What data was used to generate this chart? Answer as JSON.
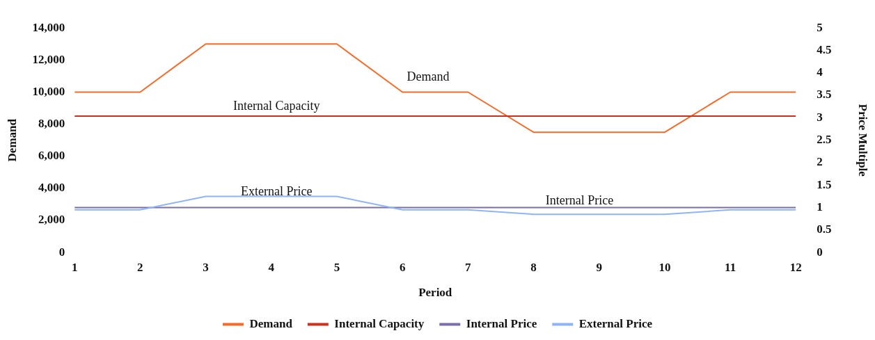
{
  "chart_data": {
    "type": "line",
    "xlabel": "Period",
    "ylabel": "Demand",
    "y2label": "Price Multiple",
    "x": [
      1,
      2,
      3,
      4,
      5,
      6,
      7,
      8,
      9,
      10,
      11,
      12
    ],
    "xlim": [
      1,
      12
    ],
    "xticks": [
      1,
      2,
      3,
      4,
      5,
      6,
      7,
      8,
      9,
      10,
      11,
      12
    ],
    "ylim": [
      0,
      14000
    ],
    "yticks": [
      {
        "value": 0,
        "label": "0"
      },
      {
        "value": 2000,
        "label": "2,000"
      },
      {
        "value": 4000,
        "label": "4,000"
      },
      {
        "value": 6000,
        "label": "6,000"
      },
      {
        "value": 8000,
        "label": "8,000"
      },
      {
        "value": 10000,
        "label": "10,000"
      },
      {
        "value": 12000,
        "label": "12,000"
      },
      {
        "value": 14000,
        "label": "14,000"
      }
    ],
    "y2lim": [
      0,
      5
    ],
    "y2ticks": [
      0,
      0.5,
      1,
      1.5,
      2,
      2.5,
      3,
      3.5,
      4,
      4.5,
      5
    ],
    "series": [
      {
        "name": "Demand",
        "color": "#f26b2a",
        "values": [
          10000,
          10000,
          13000,
          13000,
          13000,
          10000,
          10000,
          7500,
          7500,
          7500,
          10000,
          10000
        ]
      },
      {
        "name": "Internal Capacity",
        "color": "#c8321e",
        "values": [
          8500,
          8500,
          8500,
          8500,
          8500,
          8500,
          8500,
          8500,
          8500,
          8500,
          8500,
          8500
        ]
      },
      {
        "name": "Internal Price",
        "color": "#7b6fa8",
        "axis": "y2",
        "values": [
          1,
          1,
          1,
          1,
          1,
          1,
          1,
          1,
          1,
          1,
          1,
          1
        ]
      },
      {
        "name": "External Price",
        "color": "#8fb4f5",
        "axis": "y2",
        "values": [
          0.95,
          0.95,
          1.25,
          1.25,
          1.25,
          0.95,
          0.95,
          0.85,
          0.85,
          0.85,
          0.95,
          0.95
        ]
      }
    ],
    "annotations": [
      "Demand",
      "Internal Capacity",
      "External Price",
      "Internal Price"
    ],
    "legend": "bottom",
    "marker": "none",
    "line_style": "solid",
    "grid": false
  }
}
